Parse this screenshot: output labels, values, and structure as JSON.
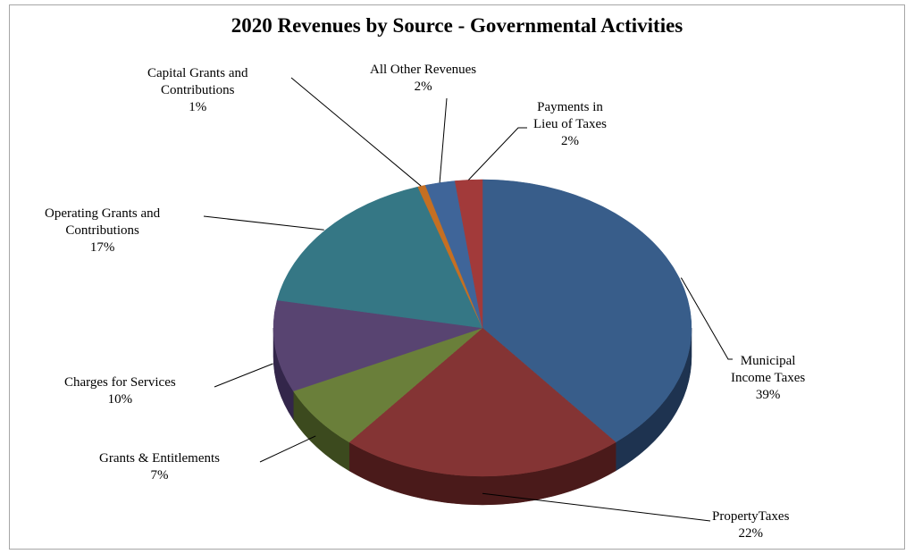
{
  "chart_data": {
    "type": "pie",
    "title": "2020 Revenues by Source - Governmental Activities",
    "style": "3d",
    "slices": [
      {
        "label": [
          "Municipal",
          "Income Taxes"
        ],
        "percent_label": "39%",
        "value": 39,
        "color": "#385d8a",
        "side": "#1e3350"
      },
      {
        "label": [
          "PropertyTaxes"
        ],
        "percent_label": "22%",
        "value": 22,
        "color": "#843434",
        "side": "#4a1a1a"
      },
      {
        "label": [
          "Grants & Entitlements"
        ],
        "percent_label": "7%",
        "value": 7,
        "color": "#6a7f3a",
        "side": "#3c4a1e"
      },
      {
        "label": [
          "Charges for Services"
        ],
        "percent_label": "10%",
        "value": 10,
        "color": "#584471",
        "side": "#33264a"
      },
      {
        "label": [
          "Operating Grants and",
          "Contributions"
        ],
        "percent_label": "17%",
        "value": 17,
        "color": "#357785",
        "side": "#1d4550"
      },
      {
        "label": [
          "Capital Grants and",
          "Contributions"
        ],
        "percent_label": "1%",
        "value": 0.6,
        "color": "#c56f22",
        "side": "#7a4010"
      },
      {
        "label": [
          "All Other Revenues"
        ],
        "percent_label": "2%",
        "value": 2.3,
        "color": "#3f6599",
        "side": "#24395a"
      },
      {
        "label": [
          "Payments in",
          "Lieu of Taxes"
        ],
        "percent_label": "2%",
        "value": 2.1,
        "color": "#a23a3a",
        "side": "#5a1e1e"
      }
    ]
  }
}
